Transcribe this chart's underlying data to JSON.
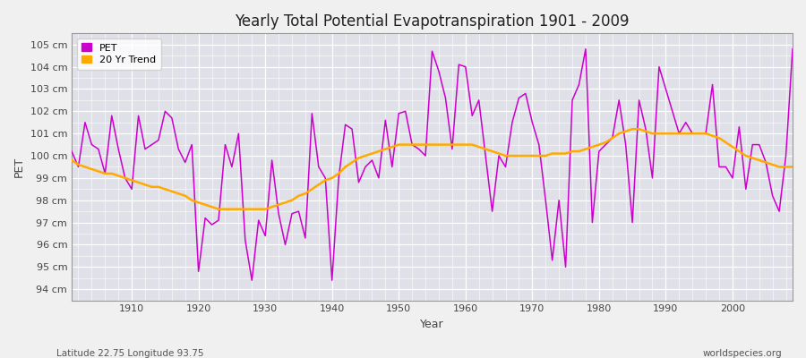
{
  "title": "Yearly Total Potential Evapotranspiration 1901 - 2009",
  "xlabel": "Year",
  "ylabel": "PET",
  "subtitle_left": "Latitude 22.75 Longitude 93.75",
  "subtitle_right": "worldspecies.org",
  "pet_color": "#cc00cc",
  "trend_color": "#ffaa00",
  "bg_color": "#f0f0f0",
  "plot_bg_color": "#e0e0e8",
  "grid_color": "#ffffff",
  "ylim": [
    93.5,
    105.5
  ],
  "yticks": [
    94,
    95,
    96,
    97,
    98,
    99,
    100,
    101,
    102,
    103,
    104,
    105
  ],
  "ytick_labels": [
    "94 cm",
    "95 cm",
    "96 cm",
    "97 cm",
    "98 cm",
    "99 cm",
    "100 cm",
    "101 cm",
    "102 cm",
    "103 cm",
    "104 cm",
    "105 cm"
  ],
  "years": [
    1901,
    1902,
    1903,
    1904,
    1905,
    1906,
    1907,
    1908,
    1909,
    1910,
    1911,
    1912,
    1913,
    1914,
    1915,
    1916,
    1917,
    1918,
    1919,
    1920,
    1921,
    1922,
    1923,
    1924,
    1925,
    1926,
    1927,
    1928,
    1929,
    1930,
    1931,
    1932,
    1933,
    1934,
    1935,
    1936,
    1937,
    1938,
    1939,
    1940,
    1941,
    1942,
    1943,
    1944,
    1945,
    1946,
    1947,
    1948,
    1949,
    1950,
    1951,
    1952,
    1953,
    1954,
    1955,
    1956,
    1957,
    1958,
    1959,
    1960,
    1961,
    1962,
    1963,
    1964,
    1965,
    1966,
    1967,
    1968,
    1969,
    1970,
    1971,
    1972,
    1973,
    1974,
    1975,
    1976,
    1977,
    1978,
    1979,
    1980,
    1981,
    1982,
    1983,
    1984,
    1985,
    1986,
    1987,
    1988,
    1989,
    1990,
    1991,
    1992,
    1993,
    1994,
    1995,
    1996,
    1997,
    1998,
    1999,
    2000,
    2001,
    2002,
    2003,
    2004,
    2005,
    2006,
    2007,
    2008,
    2009
  ],
  "pet_values": [
    100.2,
    99.5,
    101.5,
    100.5,
    100.3,
    99.2,
    101.8,
    100.3,
    99.0,
    98.5,
    101.8,
    100.3,
    100.5,
    100.7,
    102.0,
    101.7,
    100.3,
    99.7,
    100.5,
    94.8,
    97.2,
    96.9,
    97.1,
    100.5,
    99.5,
    101.0,
    96.2,
    94.4,
    97.1,
    96.4,
    99.8,
    97.4,
    96.0,
    97.4,
    97.5,
    96.3,
    101.9,
    99.5,
    99.0,
    94.4,
    99.0,
    101.4,
    101.2,
    98.8,
    99.5,
    99.8,
    99.0,
    101.6,
    99.5,
    101.9,
    102.0,
    100.5,
    100.3,
    100.0,
    104.7,
    103.8,
    102.6,
    100.3,
    104.1,
    104.0,
    101.8,
    102.5,
    100.0,
    97.5,
    100.0,
    99.5,
    101.5,
    102.6,
    102.8,
    101.5,
    100.5,
    98.0,
    95.3,
    98.0,
    95.0,
    102.5,
    103.2,
    104.8,
    97.0,
    100.2,
    100.5,
    100.8,
    102.5,
    100.5,
    97.0,
    102.5,
    101.2,
    99.0,
    104.0,
    103.0,
    102.0,
    101.0,
    101.5,
    101.0,
    101.0,
    101.0,
    103.2,
    99.5,
    99.5,
    99.0,
    101.3,
    98.5,
    100.5,
    100.5,
    99.7,
    98.2,
    97.5,
    100.0,
    104.8
  ],
  "trend_years": [
    1901,
    1902,
    1903,
    1904,
    1905,
    1906,
    1907,
    1908,
    1909,
    1910,
    1911,
    1912,
    1913,
    1914,
    1915,
    1916,
    1917,
    1918,
    1919,
    1920,
    1921,
    1922,
    1923,
    1924,
    1925,
    1926,
    1927,
    1928,
    1929,
    1930,
    1931,
    1932,
    1933,
    1934,
    1935,
    1936,
    1937,
    1938,
    1939,
    1940,
    1941,
    1942,
    1943,
    1944,
    1945,
    1946,
    1947,
    1948,
    1949,
    1950,
    1951,
    1952,
    1953,
    1954,
    1955,
    1956,
    1957,
    1958,
    1959,
    1960,
    1961,
    1962,
    1963,
    1964,
    1965,
    1966,
    1967,
    1968,
    1969,
    1970,
    1971,
    1972,
    1973,
    1974,
    1975,
    1976,
    1977,
    1978,
    1979,
    1980,
    1981,
    1982,
    1983,
    1984,
    1985,
    1986,
    1987,
    1988,
    1989,
    1990,
    1991,
    1992,
    1993,
    1994,
    1995,
    1996,
    1997,
    1998,
    1999,
    2000,
    2001,
    2002,
    2003,
    2004,
    2005,
    2006,
    2007,
    2008,
    2009
  ],
  "trend_values": [
    99.8,
    99.6,
    99.5,
    99.4,
    99.3,
    99.2,
    99.2,
    99.1,
    99.0,
    98.9,
    98.8,
    98.7,
    98.6,
    98.6,
    98.5,
    98.4,
    98.3,
    98.2,
    98.0,
    97.9,
    97.8,
    97.7,
    97.6,
    97.6,
    97.6,
    97.6,
    97.6,
    97.6,
    97.6,
    97.6,
    97.7,
    97.8,
    97.9,
    98.0,
    98.2,
    98.3,
    98.5,
    98.7,
    98.9,
    99.0,
    99.2,
    99.5,
    99.7,
    99.9,
    100.0,
    100.1,
    100.2,
    100.3,
    100.4,
    100.5,
    100.5,
    100.5,
    100.5,
    100.5,
    100.5,
    100.5,
    100.5,
    100.5,
    100.5,
    100.5,
    100.5,
    100.4,
    100.3,
    100.2,
    100.1,
    100.0,
    100.0,
    100.0,
    100.0,
    100.0,
    100.0,
    100.0,
    100.1,
    100.1,
    100.1,
    100.2,
    100.2,
    100.3,
    100.4,
    100.5,
    100.6,
    100.8,
    101.0,
    101.1,
    101.2,
    101.2,
    101.1,
    101.0,
    101.0,
    101.0,
    101.0,
    101.0,
    101.0,
    101.0,
    101.0,
    101.0,
    100.9,
    100.8,
    100.6,
    100.4,
    100.2,
    100.0,
    99.9,
    99.8,
    99.7,
    99.6,
    99.5,
    99.5,
    99.5
  ]
}
